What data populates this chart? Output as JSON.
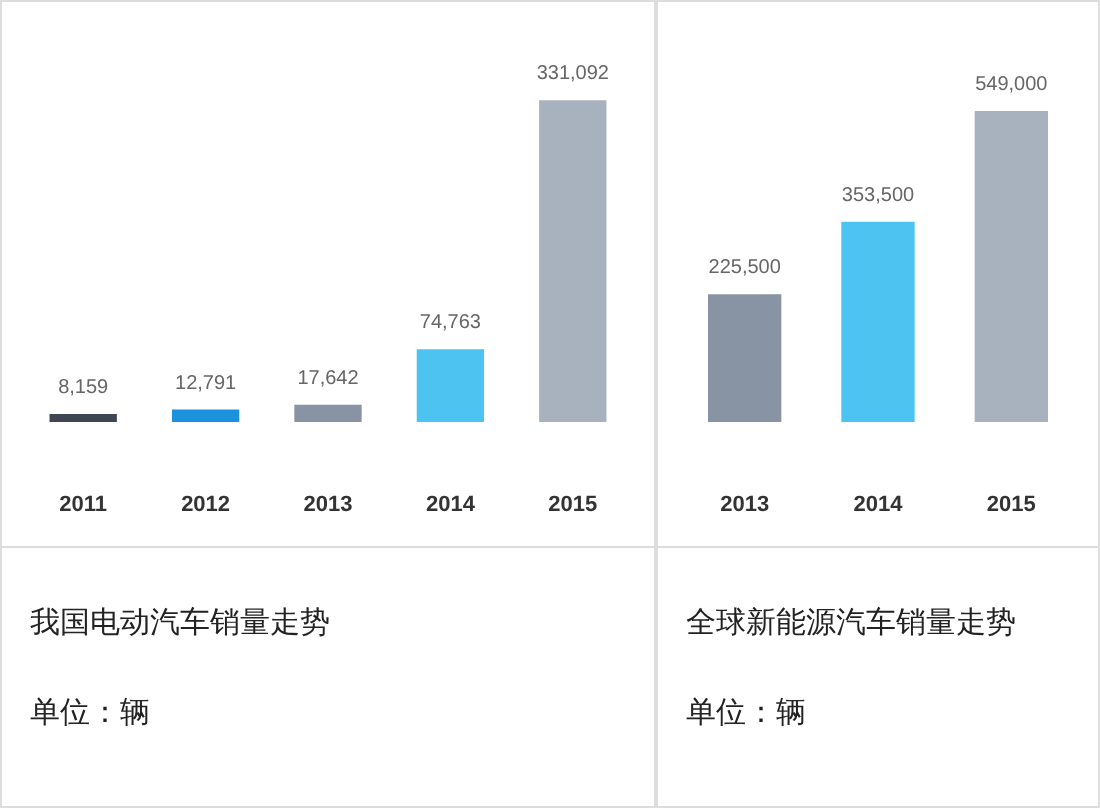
{
  "chart_data": [
    {
      "type": "bar",
      "title": "我国电动汽车销量走势",
      "annotations": [
        "单位：辆"
      ],
      "categories": [
        "2011",
        "2012",
        "2013",
        "2014",
        "2015"
      ],
      "values": [
        8159,
        12791,
        17642,
        74763,
        331092
      ],
      "value_labels": [
        "8,159",
        "12,791",
        "17,642",
        "74,763",
        "331,092"
      ],
      "colors": [
        "#3d4652",
        "#1c92dc",
        "#8894a3",
        "#4cc3f1",
        "#a8b2be"
      ],
      "tick_labels": "x"
    },
    {
      "type": "bar",
      "title": "全球新能源汽车销量走势",
      "annotations": [
        "单位：辆"
      ],
      "categories": [
        "2013",
        "2014",
        "2015"
      ],
      "values": [
        225500,
        353500,
        549000
      ],
      "value_labels": [
        "225,500",
        "353,500",
        "549,000"
      ],
      "colors": [
        "#8894a3",
        "#4cc3f1",
        "#a8b2be"
      ],
      "tick_labels": "x"
    }
  ]
}
